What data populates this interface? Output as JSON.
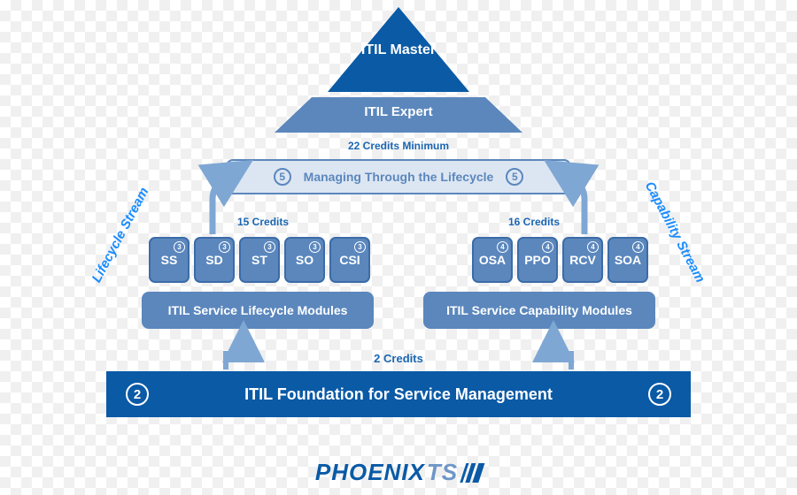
{
  "colors": {
    "primary": "#0a5aa6",
    "secondary": "#5b87bd",
    "link": "#1a8cff"
  },
  "pyramid": {
    "master": "ITIL Master",
    "expert": "ITIL Expert",
    "credits_min": "22  Credits Minimum",
    "mtl": {
      "label": "Managing Through the Lifecycle",
      "credits": "5"
    }
  },
  "streams": {
    "left_label": "Lifecycle Stream",
    "right_label": "Capability Stream",
    "lifecycle": {
      "credits": "15  Credits",
      "per_module": "3",
      "modules": [
        "SS",
        "SD",
        "ST",
        "SO",
        "CSI"
      ],
      "box": "ITIL Service Lifecycle Modules"
    },
    "capability": {
      "credits": "16  Credits",
      "per_module": "4",
      "modules": [
        "OSA",
        "PPO",
        "RCV",
        "SOA"
      ],
      "box": "ITIL Service Capability Modules"
    }
  },
  "foundation": {
    "credits_label": "2 Credits",
    "credits": "2",
    "label": "ITIL Foundation for Service Management"
  },
  "logo": {
    "part1": "PHOENIX",
    "part2": "TS"
  }
}
